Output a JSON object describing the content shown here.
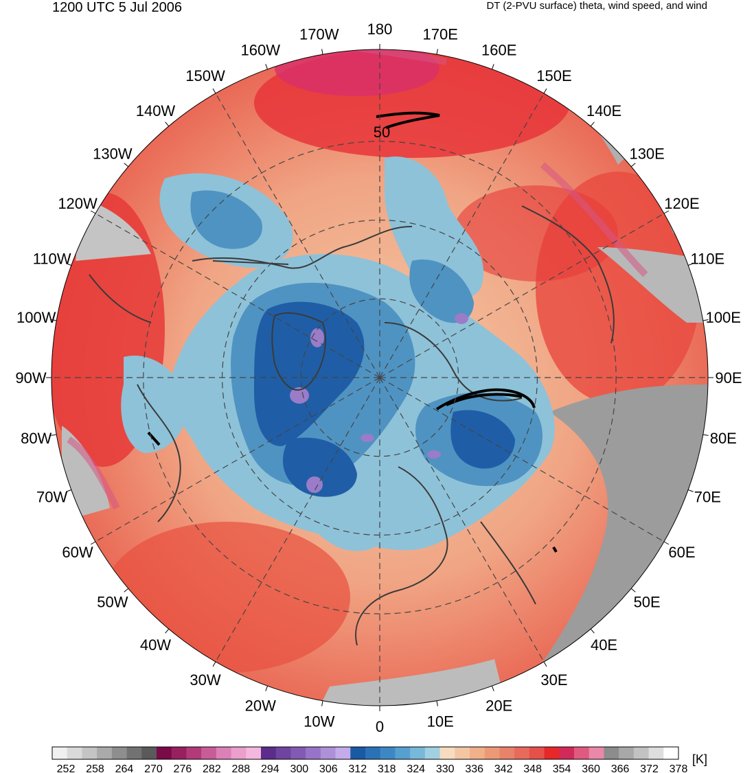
{
  "header": {
    "time_label": "1200 UTC 5 Jul 2006",
    "field_label": "DT (2-PVU surface) theta, wind speed, and wind"
  },
  "map": {
    "projection": "north-polar-stereographic",
    "longitude_labels": [
      "180",
      "170E",
      "160E",
      "150E",
      "140E",
      "130E",
      "120E",
      "110E",
      "100E",
      "90E",
      "80E",
      "70E",
      "60E",
      "50E",
      "40E",
      "30E",
      "20E",
      "10E",
      "0",
      "10W",
      "20W",
      "30W",
      "40W",
      "50W",
      "60W",
      "70W",
      "80W",
      "90W",
      "100W",
      "110W",
      "120W",
      "130W",
      "140W",
      "150W",
      "160W",
      "170W"
    ],
    "contour_label": "50",
    "colors": {
      "cold_core": "#2060a8",
      "cool": "#6aaccc",
      "neutral": "#f2c9a8",
      "warm": "#ee5a48",
      "hot": "#d41c2c",
      "highlands": "#9a9a9a",
      "coastline": "#3a3a3a"
    }
  },
  "colorbar": {
    "unit": "[K]",
    "tick_labels": [
      "252",
      "258",
      "264",
      "270",
      "276",
      "282",
      "288",
      "294",
      "300",
      "306",
      "312",
      "318",
      "324",
      "330",
      "336",
      "342",
      "348",
      "354",
      "360",
      "366",
      "372",
      "378"
    ],
    "colors": [
      "#f0f0f0",
      "#dadada",
      "#c4c4c4",
      "#aaaaaa",
      "#8e8e8e",
      "#727272",
      "#5a5a5a",
      "#7a0a48",
      "#98205e",
      "#b23a78",
      "#c85c98",
      "#dc80b8",
      "#ea9fcc",
      "#f4b8de",
      "#5c2c8c",
      "#6e44a0",
      "#825ab4",
      "#9874c8",
      "#ae90d8",
      "#c4acea",
      "#1a5aa4",
      "#2a72b6",
      "#3c88c4",
      "#56a0d0",
      "#78b8da",
      "#a0d0e2",
      "#f6ddc0",
      "#f4c6a4",
      "#f0b08a",
      "#ec9a76",
      "#e8826a",
      "#e86a5c",
      "#e6504a",
      "#e6282a",
      "#d22a58",
      "#e05a80",
      "#ea88a8",
      "#8c8c8c",
      "#a8a8a8",
      "#c2c2c2",
      "#dedede",
      "#ffffff"
    ]
  }
}
